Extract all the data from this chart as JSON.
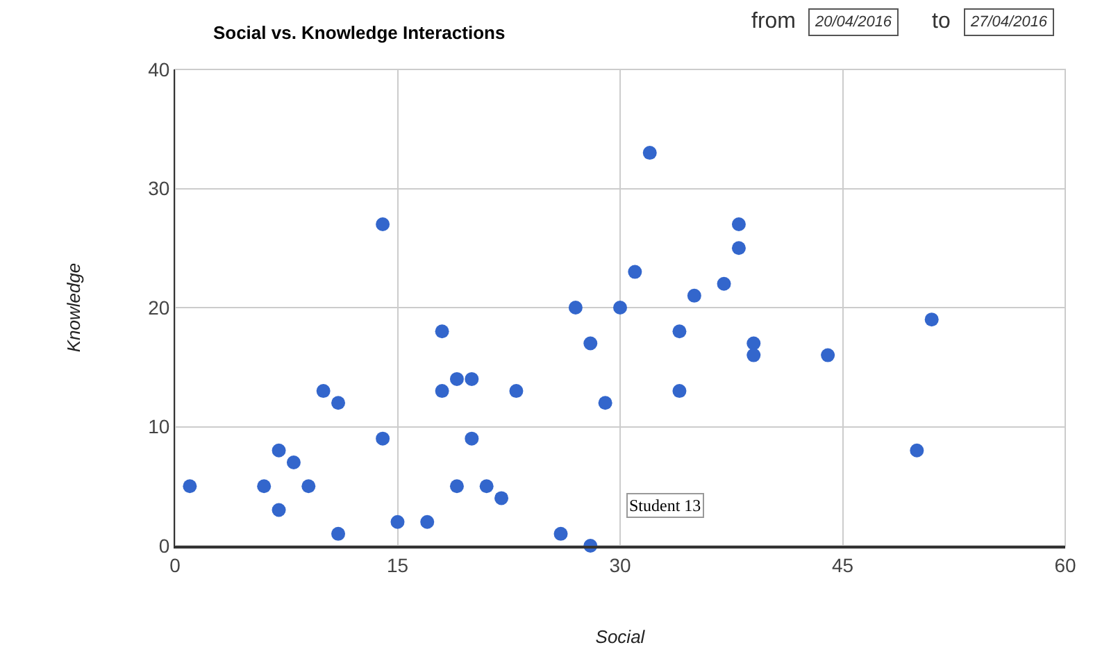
{
  "chart_data": {
    "type": "scatter",
    "title": "Social vs. Knowledge Interactions",
    "xlabel": "Social",
    "ylabel": "Knowledge",
    "x": [
      1,
      6,
      7,
      7,
      8,
      9,
      10,
      11,
      11,
      14,
      14,
      15,
      17,
      18,
      18,
      19,
      20,
      19,
      20,
      21,
      22,
      23,
      26,
      27,
      28,
      28,
      29,
      30,
      31,
      32,
      34,
      34,
      35,
      37,
      38,
      38,
      39,
      39,
      44,
      50,
      51
    ],
    "series": [
      {
        "color": "#3366cc",
        "values": [
          5,
          5,
          8,
          3,
          7,
          5,
          13,
          12,
          1,
          27,
          9,
          2,
          2,
          18,
          13,
          14,
          14,
          5,
          9,
          5,
          4,
          13,
          1,
          20,
          17,
          0,
          12,
          20,
          23,
          33,
          18,
          13,
          21,
          22,
          27,
          25,
          17,
          16,
          16,
          8,
          19
        ]
      }
    ],
    "xlim": [
      0,
      60
    ],
    "xticks": [
      0,
      15,
      30,
      45,
      60
    ],
    "ylim": [
      0,
      40
    ],
    "yticks": [
      0,
      10,
      20,
      30,
      40
    ],
    "grid": true,
    "marker": "circle",
    "annotations": [
      {
        "text": "Student 13",
        "x": 28,
        "y": 0
      },
      "from",
      "20/04/2016",
      "to",
      "27/04/2016"
    ]
  }
}
